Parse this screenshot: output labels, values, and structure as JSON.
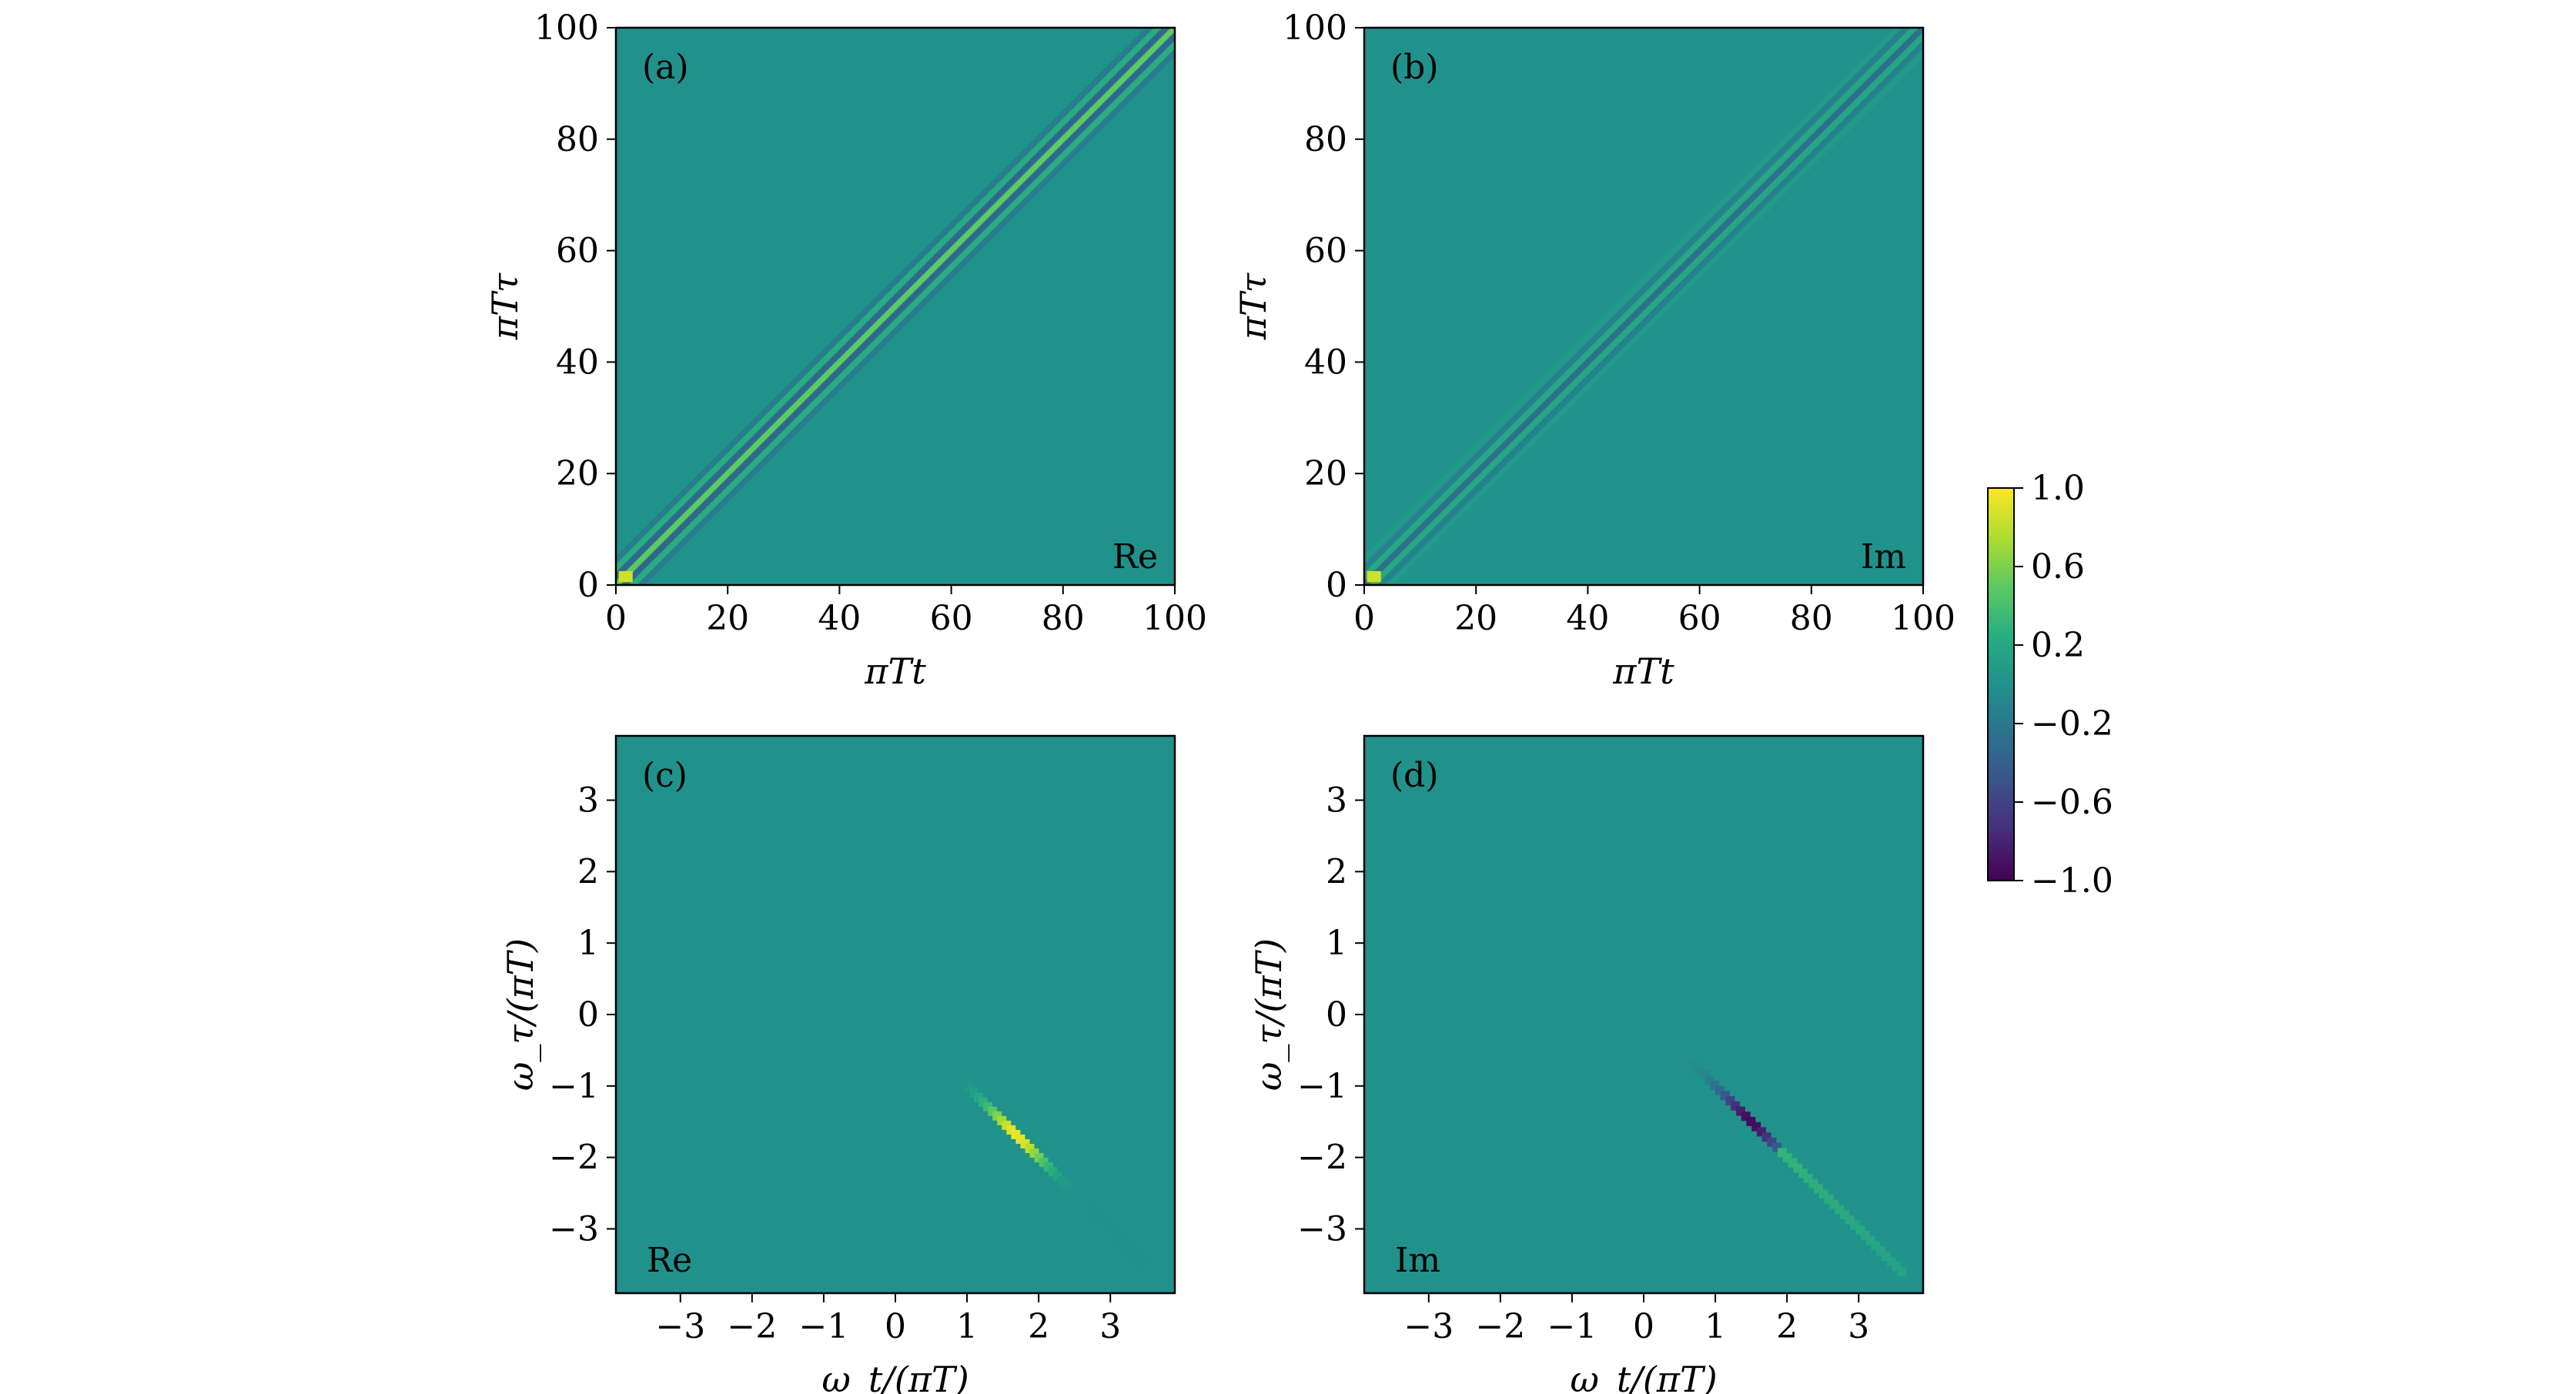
{
  "chart_data": [
    {
      "type": "heatmap",
      "panel": "(a)",
      "component": "Re",
      "xlabel": "πTt",
      "ylabel": "πTτ",
      "xlim": [
        0,
        100
      ],
      "ylim": [
        0,
        100
      ],
      "xticks": [
        0,
        20,
        40,
        60,
        80,
        100
      ],
      "yticks": [
        0,
        20,
        40,
        60,
        80,
        100
      ],
      "xtick_labels": [
        "0",
        "20",
        "40",
        "60",
        "80",
        "100"
      ],
      "ytick_labels": [
        "0",
        "20",
        "40",
        "60",
        "80",
        "100"
      ],
      "features": [
        {
          "kind": "oscillating-diagonal-band",
          "from": [
            0,
            0
          ],
          "to": [
            100,
            100
          ],
          "peak_value": 0.9,
          "near_origin": "yellow"
        }
      ]
    },
    {
      "type": "heatmap",
      "panel": "(b)",
      "component": "Im",
      "xlabel": "πTt",
      "ylabel": "πTτ",
      "xlim": [
        0,
        100
      ],
      "ylim": [
        0,
        100
      ],
      "xticks": [
        0,
        20,
        40,
        60,
        80,
        100
      ],
      "yticks": [
        0,
        20,
        40,
        60,
        80,
        100
      ],
      "xtick_labels": [
        "0",
        "20",
        "40",
        "60",
        "80",
        "100"
      ],
      "ytick_labels": [
        "0",
        "20",
        "40",
        "60",
        "80",
        "100"
      ],
      "features": [
        {
          "kind": "oscillating-diagonal-band",
          "from": [
            0,
            0
          ],
          "to": [
            100,
            100
          ],
          "peak_value": -0.5,
          "near_origin": "yellow"
        }
      ]
    },
    {
      "type": "heatmap",
      "panel": "(c)",
      "component": "Re",
      "xlabel": "ω_t/(πT)",
      "ylabel": "ω_τ/(πT)",
      "xlim": [
        -3.9,
        3.9
      ],
      "ylim": [
        -3.9,
        3.9
      ],
      "xticks": [
        -3,
        -2,
        -1,
        0,
        1,
        2,
        3
      ],
      "yticks": [
        -3,
        -2,
        -1,
        0,
        1,
        2,
        3
      ],
      "xtick_labels": [
        "−3",
        "−2",
        "−1",
        "0",
        "1",
        "2",
        "3"
      ],
      "ytick_labels": [
        "−3",
        "−2",
        "−1",
        "0",
        "1",
        "2",
        "3"
      ],
      "features": [
        {
          "kind": "anti-diagonal-streak",
          "from": [
            0.9,
            -0.9
          ],
          "to": [
            3.5,
            -3.5
          ],
          "peak_at": [
            1.8,
            -1.6
          ],
          "peak_value": 1.0
        }
      ]
    },
    {
      "type": "heatmap",
      "panel": "(d)",
      "component": "Im",
      "xlabel": "ω_t/(πT)",
      "ylabel": "ω_τ/(πT)",
      "xlim": [
        -3.9,
        3.9
      ],
      "ylim": [
        -3.9,
        3.9
      ],
      "xticks": [
        -3,
        -2,
        -1,
        0,
        1,
        2,
        3
      ],
      "yticks": [
        -3,
        -2,
        -1,
        0,
        1,
        2,
        3
      ],
      "xtick_labels": [
        "−3",
        "−2",
        "−1",
        "0",
        "1",
        "2",
        "3"
      ],
      "ytick_labels": [
        "−3",
        "−2",
        "−1",
        "0",
        "1",
        "2",
        "3"
      ],
      "features": [
        {
          "kind": "anti-diagonal-streak",
          "from": [
            0.7,
            -0.7
          ],
          "to": [
            3.6,
            -3.6
          ],
          "peak_at": [
            1.6,
            -1.4
          ],
          "peak_value": -1.0,
          "tail_value": 0.35
        }
      ]
    }
  ],
  "colorbar": {
    "colormap": "viridis",
    "range": [
      -1.0,
      1.0
    ],
    "ticks": [
      1.0,
      0.6,
      0.2,
      -0.2,
      -0.6,
      -1.0
    ],
    "tick_labels": [
      "1.0",
      "0.6",
      "0.2",
      "−0.2",
      "−0.6",
      "−1.0"
    ]
  },
  "colors": {
    "background_field": "#21918c",
    "viridis_low": "#440154",
    "viridis_high": "#fde725"
  }
}
